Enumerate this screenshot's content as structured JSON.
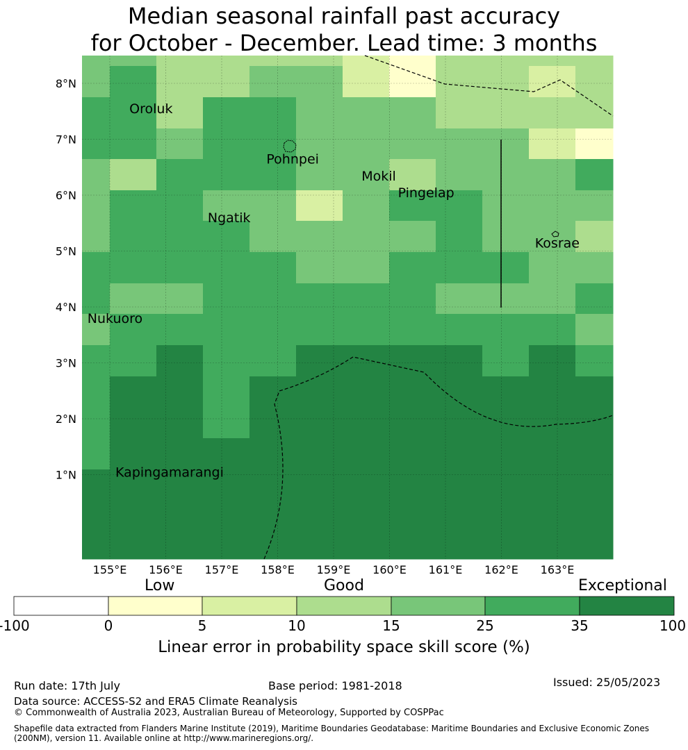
{
  "title": {
    "line1": "Median seasonal rainfall past accuracy",
    "line2": "for October - December. Lead time: 3 months"
  },
  "map": {
    "lon_labels": [
      "155°E",
      "156°E",
      "157°E",
      "158°E",
      "159°E",
      "160°E",
      "161°E",
      "162°E",
      "163°E"
    ],
    "lat_labels": [
      "8°N",
      "7°N",
      "6°N",
      "5°N",
      "4°N",
      "3°N",
      "2°N",
      "1°N"
    ],
    "places": [
      {
        "name": "Oroluk",
        "lon": 155.35,
        "lat": 7.55
      },
      {
        "name": "Pohnpei",
        "lon": 157.8,
        "lat": 6.65
      },
      {
        "name": "Mokil",
        "lon": 159.5,
        "lat": 6.35
      },
      {
        "name": "Pingelap",
        "lon": 160.15,
        "lat": 6.05
      },
      {
        "name": "Ngatik",
        "lon": 156.75,
        "lat": 5.6
      },
      {
        "name": "Kosrae",
        "lon": 162.6,
        "lat": 5.15
      },
      {
        "name": "Nukuoro",
        "lon": 154.6,
        "lat": 3.8
      },
      {
        "name": "Kapingamarangi",
        "lon": 155.1,
        "lat": 1.05
      }
    ],
    "palette": {
      "0": "#ffffff",
      "1": "#ffffcc",
      "2": "#d9f0a3",
      "3": "#addd8e",
      "4": "#78c679",
      "5": "#41ab5d",
      "6": "#238443"
    }
  },
  "legend": {
    "category_labels": [
      "Low",
      "Good",
      "Exceptional"
    ],
    "ticks": [
      "-100",
      "0",
      "5",
      "10",
      "15",
      "25",
      "35",
      "100"
    ],
    "title": "Linear error in probability space skill score (%)"
  },
  "footer": {
    "run_date": "Run date: 17th July",
    "base_period": "Base period: 1981-2018",
    "issued": "Issued: 25/05/2023",
    "data_source": "Data source: ACCESS-S2 and ERA5 Climate Reanalysis",
    "copyright": "© Commonwealth of Australia 2023, Australian Bureau of Meteorology, Supported by COSPPac",
    "shapefile_line1": "Shapefile data extracted from Flanders Marine Institute (2019), Maritime Boundaries Geodatabase: Maritime Boundaries and Exclusive Economic Zones",
    "shapefile_line2": "(200NM), version 11. Available online at http://www.marineregions.org/."
  }
}
